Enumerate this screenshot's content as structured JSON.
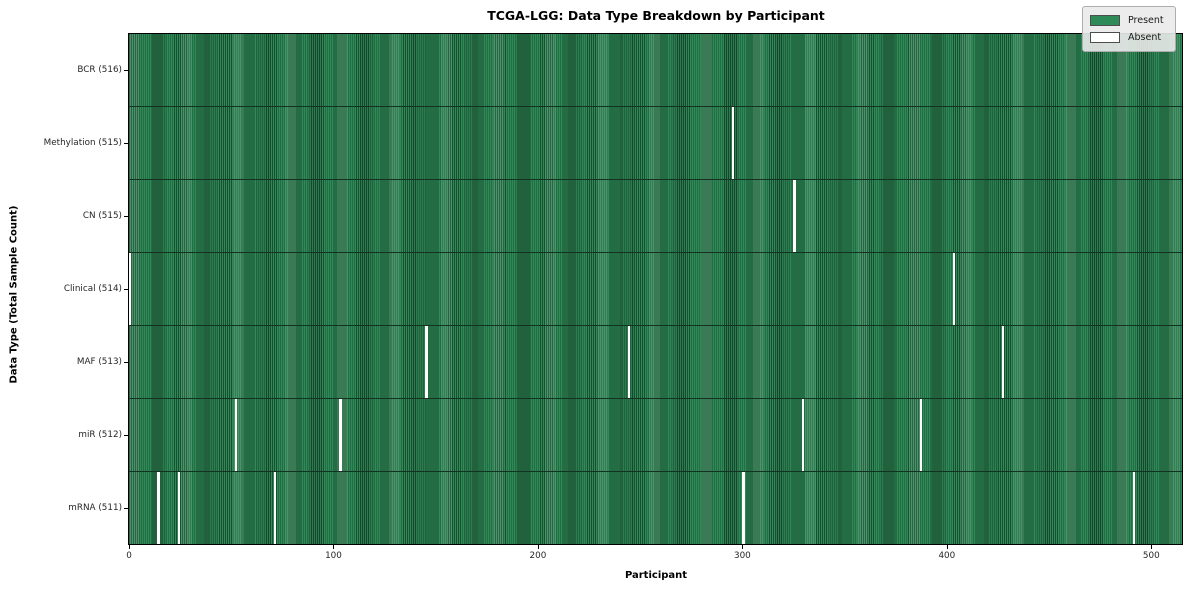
{
  "title": "TCGA-LGG: Data Type Breakdown by Participant",
  "axes": {
    "xlabel": "Participant",
    "ylabel": "Data Type (Total Sample Count)"
  },
  "colors": {
    "present": "#2e8b57",
    "present_edge": "#1b4d30",
    "absent": "#ffffff",
    "legend_bg": "#eaeaea"
  },
  "chart_data": {
    "type": "heatmap",
    "title": "TCGA-LGG: Data Type Breakdown by Participant",
    "xlabel": "Participant",
    "ylabel": "Data Type (Total Sample Count)",
    "n_participants": 516,
    "x_range": [
      -0.5,
      515.5
    ],
    "x_ticks": [
      0,
      100,
      200,
      300,
      400,
      500
    ],
    "grid": false,
    "legend_position": "upper right",
    "legend": [
      {
        "label": "Present",
        "color": "#2e8b57"
      },
      {
        "label": "Absent",
        "color": "#ffffff"
      }
    ],
    "rows": [
      {
        "label": "BCR (516)",
        "data_type": "BCR",
        "total_samples": 516,
        "absent_participants": []
      },
      {
        "label": "Methylation (515)",
        "data_type": "Methylation",
        "total_samples": 515,
        "absent_participants": [
          295
        ]
      },
      {
        "label": "CN (515)",
        "data_type": "CN",
        "total_samples": 515,
        "absent_participants": [
          325
        ]
      },
      {
        "label": "Clinical (514)",
        "data_type": "Clinical",
        "total_samples": 514,
        "absent_participants": [
          0,
          403
        ]
      },
      {
        "label": "MAF (513)",
        "data_type": "MAF",
        "total_samples": 513,
        "absent_participants": [
          145,
          244,
          427
        ]
      },
      {
        "label": "miR (512)",
        "data_type": "miR",
        "total_samples": 512,
        "absent_participants": [
          52,
          103,
          329,
          387
        ]
      },
      {
        "label": "mRNA (511)",
        "data_type": "mRNA",
        "total_samples": 511,
        "absent_participants": [
          14,
          24,
          71,
          300,
          491
        ]
      }
    ]
  }
}
